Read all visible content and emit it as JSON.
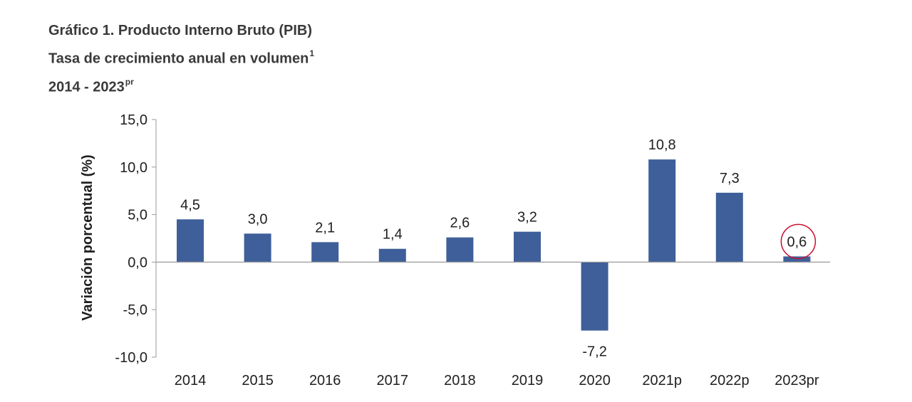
{
  "title": {
    "line1": "Gráfico 1. Producto Interno Bruto (PIB)",
    "line2": "Tasa de crecimiento anual en volumen",
    "line2_sup": "1",
    "line3": "2014 - 2023",
    "line3_sup": "pr"
  },
  "colors": {
    "bar": "#3e5f99",
    "axis": "#9a9a9a",
    "highlight_circle": "#c8102e",
    "text": "#1f1f1f"
  },
  "chart_data": {
    "type": "bar",
    "categories": [
      "2014",
      "2015",
      "2016",
      "2017",
      "2018",
      "2019",
      "2020",
      "2021p",
      "2022p",
      "2023pr"
    ],
    "values": [
      4.5,
      3.0,
      2.1,
      1.4,
      2.6,
      3.2,
      -7.2,
      10.8,
      7.3,
      0.6
    ],
    "value_labels": [
      "4,5",
      "3,0",
      "2,1",
      "1,4",
      "2,6",
      "3,2",
      "-7,2",
      "10,8",
      "7,3",
      "0,6"
    ],
    "ylabel": "Variación porcentual (%)",
    "xlabel": "",
    "ylim": [
      -10,
      15
    ],
    "yticks": [
      15,
      10,
      5,
      0,
      -5,
      -10
    ],
    "ytick_labels": [
      "15,0",
      "10,0",
      "5,0",
      "0,0",
      "-5,0",
      "-10,0"
    ],
    "grid": false,
    "highlighted_category": "2023pr"
  }
}
